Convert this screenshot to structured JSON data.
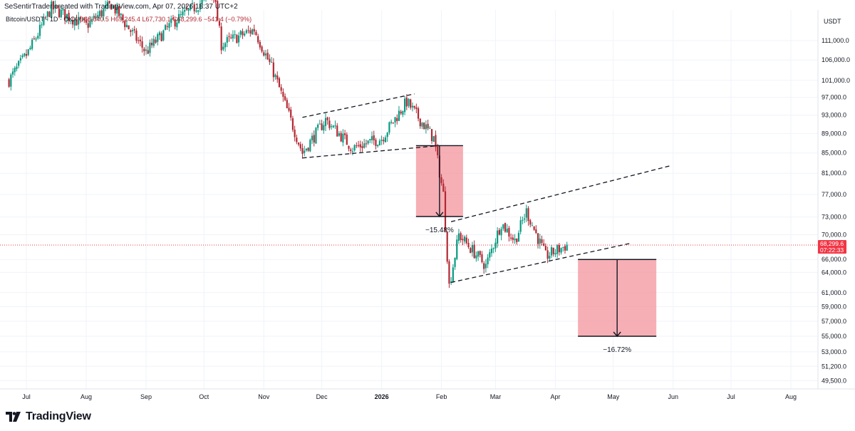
{
  "header": {
    "credit": "SeSentirTrader created with TradingView.com, Apr 07, 2026 18:37 UTC+2",
    "symbol": "Bitcoin/USDT · 1D · OKX",
    "ohlc": "O68,640.5 H69,245.4 L67,730.1 C68,299.6 −541.4 (−0.79%)"
  },
  "brand": {
    "logo_text": "TradingView"
  },
  "colors": {
    "up": "#089981",
    "down": "#b22833",
    "box": "#f28d96",
    "accent_label": "#f23645"
  },
  "chart_data": {
    "type": "candlestick",
    "symbol": "Bitcoin/USDT",
    "currency_label": "USDT",
    "timeframe": "1D",
    "exchange": "OKX",
    "price_ticks": [
      49500,
      51200,
      53000,
      55000,
      57000,
      59000,
      61000,
      64000,
      66000,
      70000,
      73000,
      77000,
      81000,
      85000,
      89000,
      93000,
      97000,
      101000,
      106000,
      111000
    ],
    "price_tick_labels": [
      "49,500.0",
      "51,200.0",
      "53,000.0",
      "55,000.0",
      "57,000.0",
      "59,000.0",
      "61,000.0",
      "64,000.0",
      "66,000.0",
      "70,000.0",
      "73,000.0",
      "77,000.0",
      "81,000.0",
      "85,000.0",
      "89,000.0",
      "93,000.0",
      "97,000.0",
      "101,000.0",
      "106,000.0",
      "111,000.0"
    ],
    "y_scale": "log",
    "ylim": [
      48000,
      125000
    ],
    "months": [
      "Jul",
      "Aug",
      "Sep",
      "Oct",
      "Nov",
      "Dec",
      "2026",
      "Feb",
      "Mar",
      "Apr",
      "May",
      "Jun",
      "Jul",
      "Aug"
    ],
    "last_price": {
      "value": 68299.6,
      "label": "68,299.6",
      "countdown": "07:22:33"
    },
    "series_keypoints": [
      {
        "date": "2025-06-22",
        "close": 101000
      },
      {
        "date": "2025-07-02",
        "close": 108000
      },
      {
        "date": "2025-07-14",
        "close": 120000
      },
      {
        "date": "2025-08-01",
        "close": 115000
      },
      {
        "date": "2025-08-14",
        "close": 121000
      },
      {
        "date": "2025-09-01",
        "close": 108000
      },
      {
        "date": "2025-09-15",
        "close": 116000
      },
      {
        "date": "2025-10-06",
        "close": 124000
      },
      {
        "date": "2025-10-10",
        "close": 110000
      },
      {
        "date": "2025-10-27",
        "close": 114000
      },
      {
        "date": "2025-11-06",
        "close": 103000
      },
      {
        "date": "2025-11-21",
        "close": 85000
      },
      {
        "date": "2025-12-03",
        "close": 92000
      },
      {
        "date": "2025-12-17",
        "close": 86000
      },
      {
        "date": "2026-01-01",
        "close": 88000
      },
      {
        "date": "2026-01-14",
        "close": 96000
      },
      {
        "date": "2026-01-28",
        "close": 88000
      },
      {
        "date": "2026-02-02",
        "close": 77000
      },
      {
        "date": "2026-02-05",
        "close": 62000
      },
      {
        "date": "2026-02-10",
        "close": 70000
      },
      {
        "date": "2026-02-24",
        "close": 65000
      },
      {
        "date": "2026-03-04",
        "close": 72000
      },
      {
        "date": "2026-03-11",
        "close": 69000
      },
      {
        "date": "2026-03-17",
        "close": 74000
      },
      {
        "date": "2026-03-27",
        "close": 66500
      },
      {
        "date": "2026-04-07",
        "close": 68299.6
      }
    ],
    "annotations": [
      {
        "kind": "channel",
        "label": "",
        "lines": [
          {
            "from": [
              "2025-11-21",
              84000
            ],
            "to": [
              "2026-01-31",
              86500
            ]
          },
          {
            "from": [
              "2025-11-21",
              92500
            ],
            "to": [
              "2026-01-18",
              97800
            ]
          }
        ]
      },
      {
        "kind": "measured_move",
        "label": "−15.48%",
        "from": [
          "2026-01-31",
          86500
        ],
        "to": [
          "2026-01-31",
          73100
        ]
      },
      {
        "kind": "channel",
        "label": "",
        "lines": [
          {
            "from": [
              "2026-02-06",
              62500
            ],
            "to": [
              "2026-05-10",
              68600
            ]
          },
          {
            "from": [
              "2026-02-06",
              72200
            ],
            "to": [
              "2026-05-31",
              82500
            ]
          }
        ]
      },
      {
        "kind": "measured_move",
        "label": "−16.72%",
        "from": [
          "2026-05-03",
          66000
        ],
        "to": [
          "2026-05-03",
          55000
        ]
      }
    ]
  }
}
